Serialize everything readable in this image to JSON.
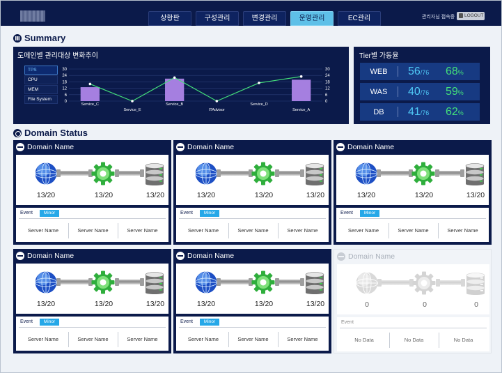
{
  "nav": {
    "tabs": [
      {
        "label": "상황판",
        "active": false
      },
      {
        "label": "구성관리",
        "active": false
      },
      {
        "label": "변경관리",
        "active": false
      },
      {
        "label": "운영관리",
        "active": true
      },
      {
        "label": "EC관리",
        "active": false
      }
    ],
    "user_status": "관리자님 접속중",
    "logout_label": "LOGOUT"
  },
  "summary": {
    "title": "Summary",
    "trend_panel": {
      "title": "도메인별 관리대상 변화추이",
      "legend": [
        "TPS",
        "CPU",
        "MEM",
        "File System"
      ],
      "selected_metric": "TPS"
    },
    "tier_panel": {
      "title": "Tier별 가동율",
      "rows": [
        {
          "name": "WEB",
          "value": "56",
          "total": "/76",
          "pct": "68",
          "pct_unit": "%"
        },
        {
          "name": "WAS",
          "value": "40",
          "total": "/76",
          "pct": "59",
          "pct_unit": "%"
        },
        {
          "name": "DB",
          "value": "41",
          "total": "/76",
          "pct": "62",
          "pct_unit": "%"
        }
      ]
    }
  },
  "chart_data": {
    "type": "bar",
    "categories": [
      "Service_C",
      "Service_E",
      "Service_B",
      "ITAdvisor",
      "Service_D",
      "Service_A"
    ],
    "series": [
      {
        "type": "bar",
        "values": [
          13,
          0,
          21,
          0,
          0,
          20
        ]
      },
      {
        "type": "line",
        "values": [
          16,
          0,
          22,
          0,
          17,
          23
        ]
      }
    ],
    "ylim": [
      0,
      30
    ],
    "y_ticks": [
      "30",
      "24",
      "18",
      "12",
      "6",
      "0"
    ],
    "colors": {
      "bar": "#a57fe0",
      "line": "#44e07a"
    },
    "grid": true,
    "xlabel": "",
    "ylabel": ""
  },
  "domain_status": {
    "title": "Domain Status",
    "cards": [
      {
        "name": "Domain Name",
        "counts": [
          "13/20",
          "13/20",
          "13/20"
        ],
        "event_label": "Event",
        "event_level": "Minor",
        "servers": [
          "Server Name",
          "Server Name",
          "Server Name"
        ],
        "disabled": false
      },
      {
        "name": "Domain Name",
        "counts": [
          "13/20",
          "13/20",
          "13/20"
        ],
        "event_label": "Event",
        "event_level": "Minor",
        "servers": [
          "Server Name",
          "Server Name",
          "Server Name"
        ],
        "disabled": false
      },
      {
        "name": "Domain Name",
        "counts": [
          "13/20",
          "13/20",
          "13/20"
        ],
        "event_label": "Event",
        "event_level": "Minor",
        "servers": [
          "Server Name",
          "Server Name",
          "Server Name"
        ],
        "disabled": false
      },
      {
        "name": "Domain Name",
        "counts": [
          "13/20",
          "13/20",
          "13/20"
        ],
        "event_label": "Event",
        "event_level": "Minor",
        "servers": [
          "Server Name",
          "Server Name",
          "Server Name"
        ],
        "disabled": false
      },
      {
        "name": "Domain Name",
        "counts": [
          "13/20",
          "13/20",
          "13/20"
        ],
        "event_label": "Event",
        "event_level": "Minor",
        "servers": [
          "Server Name",
          "Server Name",
          "Server Name"
        ],
        "disabled": false
      },
      {
        "name": "Domain Name",
        "counts": [
          "0",
          "0",
          "0"
        ],
        "event_label": "Event",
        "event_level": "",
        "servers": [
          "No Data",
          "No Data",
          "No Data"
        ],
        "disabled": true
      }
    ]
  }
}
